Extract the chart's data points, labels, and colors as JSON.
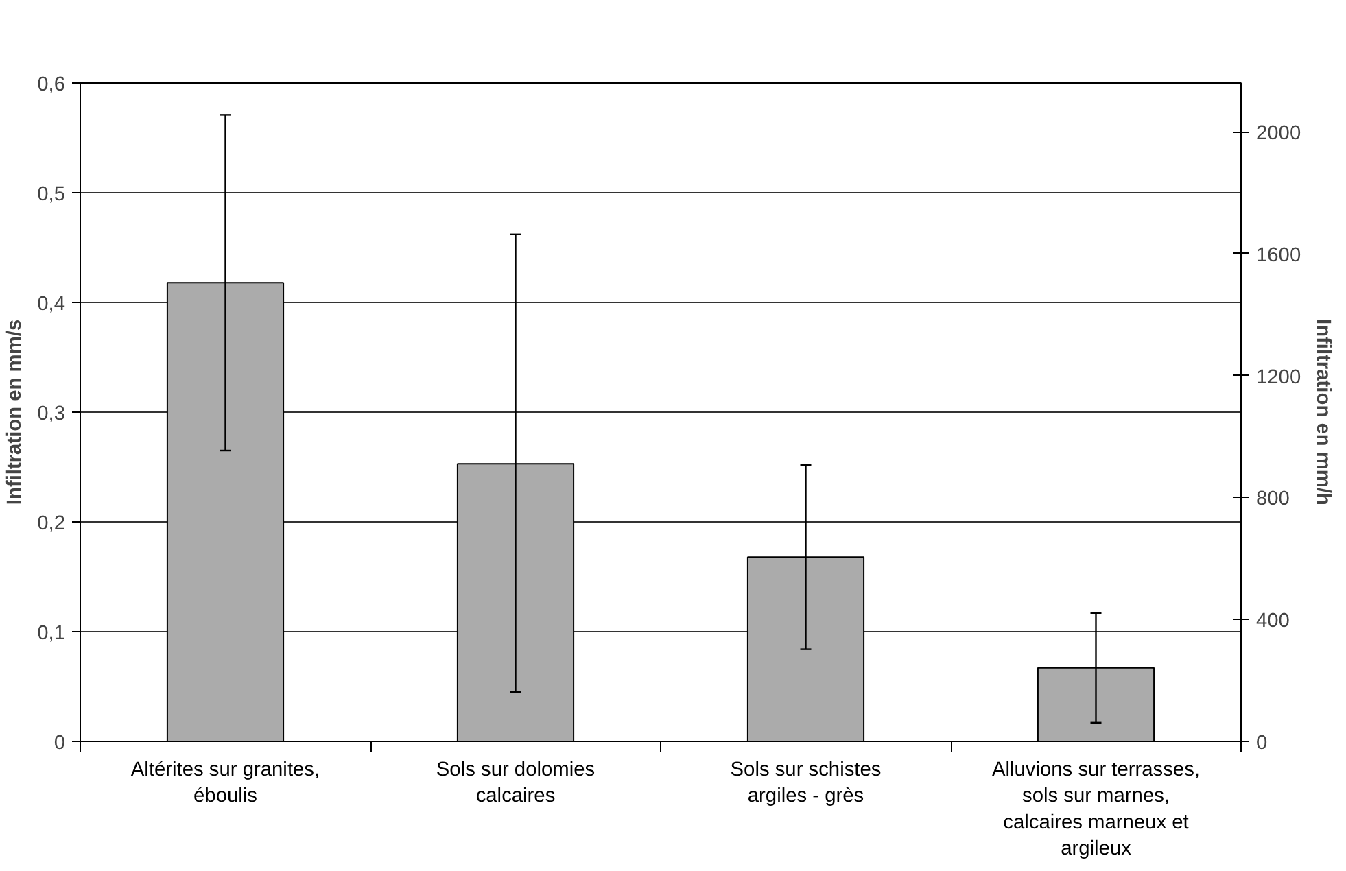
{
  "chart_data": {
    "type": "bar",
    "ylabel": "Infiltration en mm/s",
    "y2label": "Infiltration en mm/h",
    "categories": [
      "Altérites sur granites, éboulis",
      "Sols sur dolomies calcaires",
      "Sols sur schistes argiles - grès",
      "Alluvions sur terrasses, sols sur marnes, calcaires marneux et argileux"
    ],
    "values": [
      0.418,
      0.253,
      0.168,
      0.067
    ],
    "errors": [
      [
        0.265,
        0.571
      ],
      [
        0.045,
        0.462
      ],
      [
        0.084,
        0.252
      ],
      [
        0.017,
        0.117
      ]
    ],
    "color": "#ababab",
    "ylim": [
      0,
      0.6
    ],
    "yticks": [
      0,
      {
        "value": 0.1,
        "label": "0,1"
      },
      {
        "value": 0.2,
        "label": "0,2"
      },
      {
        "value": 0.3,
        "label": "0,3"
      },
      {
        "value": 0.4,
        "label": "0,4"
      },
      {
        "value": 0.5,
        "label": "0,5"
      },
      {
        "value": 0.6,
        "label": "0,6"
      }
    ],
    "y2lim": [
      0,
      2160
    ],
    "y2ticks": [
      0,
      400,
      800,
      1200,
      1600,
      2000
    ],
    "grid": "y"
  }
}
